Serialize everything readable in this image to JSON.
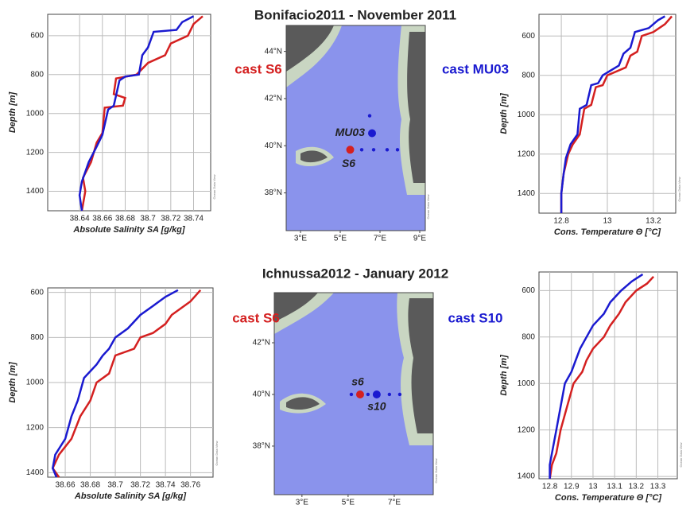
{
  "chart_data": [
    {
      "type": "profile",
      "xlabel": "Absolute Salinity SA [g/kg]",
      "ylabel": "Depth [m]",
      "watermark": "Ocean Data View",
      "xlim": [
        38.612,
        38.755
      ],
      "xticks": [
        38.64,
        38.66,
        38.68,
        38.7,
        38.72,
        38.74
      ],
      "ylim": [
        490,
        1500
      ],
      "yticks": [
        600,
        800,
        1000,
        1200,
        1400
      ],
      "y_inverted": true,
      "grid": true,
      "series": [
        {
          "color": "#d42020",
          "x": [
            38.748,
            38.74,
            38.735,
            38.72,
            38.715,
            38.7,
            38.69,
            38.672,
            38.67,
            38.68,
            38.678,
            38.662,
            38.66,
            38.655,
            38.65,
            38.643,
            38.645,
            38.642
          ],
          "values": [
            500,
            540,
            600,
            640,
            700,
            740,
            800,
            820,
            900,
            920,
            960,
            970,
            1100,
            1150,
            1250,
            1330,
            1400,
            1500
          ]
        },
        {
          "color": "#1a1ad0",
          "x": [
            38.74,
            38.73,
            38.725,
            38.705,
            38.7,
            38.695,
            38.692,
            38.68,
            38.675,
            38.67,
            38.665,
            38.66,
            38.655,
            38.648,
            38.642,
            38.64,
            38.642
          ],
          "values": [
            500,
            530,
            570,
            580,
            660,
            700,
            800,
            810,
            830,
            960,
            980,
            1110,
            1170,
            1250,
            1350,
            1420,
            1500
          ]
        }
      ]
    },
    {
      "type": "map",
      "title": "Bonifacio2011 - November 2011",
      "watermark": "Ocean Data View",
      "xlim": [
        2.28,
        9.28
      ],
      "xticks": [
        {
          "value": 3,
          "label": "3°E"
        },
        {
          "value": 5,
          "label": "5°E"
        },
        {
          "value": 7,
          "label": "7°E"
        },
        {
          "value": 9,
          "label": "9°E"
        }
      ],
      "ylim": [
        36.4,
        45.1
      ],
      "yticks": [
        {
          "value": 38,
          "label": "38°N"
        },
        {
          "value": 40,
          "label": "40°N"
        },
        {
          "value": 42,
          "label": "42°N"
        },
        {
          "value": 44,
          "label": "44°N"
        }
      ],
      "series": [
        {
          "name": "cast S6",
          "color": "#d42020",
          "x": [
            5.5
          ],
          "values": [
            39.83
          ],
          "labels": [
            "S6"
          ]
        },
        {
          "name": "cast MU03",
          "color": "#1a1ad0",
          "x": [
            6.6
          ],
          "values": [
            40.53
          ],
          "labels": [
            "MU03"
          ]
        },
        {
          "color": "#1a1ad0",
          "x": [
            6.48,
            6.08,
            6.68,
            7.36,
            7.88
          ],
          "values": [
            41.27,
            39.83,
            39.83,
            39.83,
            39.83
          ]
        }
      ]
    },
    {
      "type": "profile",
      "xlabel": "Cons. Temperature Θ [°C]",
      "ylabel": "Depth [m]",
      "watermark": "Ocean Data View",
      "xlim": [
        12.703,
        13.297
      ],
      "xticks": [
        12.8,
        13,
        13.2
      ],
      "ylim": [
        490,
        1500
      ],
      "yticks": [
        600,
        800,
        1000,
        1200,
        1400
      ],
      "y_inverted": true,
      "grid": true,
      "series": [
        {
          "color": "#d42020",
          "x": [
            13.28,
            13.25,
            13.2,
            13.15,
            13.13,
            13.1,
            13.08,
            13.0,
            12.98,
            12.95,
            12.93,
            12.9,
            12.88,
            12.85,
            12.83,
            12.81,
            12.8,
            12.8
          ],
          "values": [
            500,
            540,
            580,
            600,
            680,
            700,
            760,
            800,
            850,
            860,
            950,
            970,
            1100,
            1150,
            1200,
            1300,
            1400,
            1500
          ]
        },
        {
          "color": "#1a1ad0",
          "x": [
            13.25,
            13.22,
            13.18,
            13.12,
            13.1,
            13.07,
            13.05,
            12.98,
            12.96,
            12.93,
            12.91,
            12.88,
            12.87,
            12.84,
            12.82,
            12.81,
            12.8,
            12.8
          ],
          "values": [
            500,
            520,
            560,
            580,
            660,
            690,
            750,
            800,
            840,
            850,
            950,
            970,
            1100,
            1150,
            1220,
            1300,
            1400,
            1500
          ]
        }
      ]
    },
    {
      "type": "profile",
      "xlabel": "Absolute Salinity SA [g/kg]",
      "ylabel": "Depth [m]",
      "watermark": "Ocean Data View",
      "xlim": [
        38.646,
        38.778
      ],
      "xticks": [
        38.66,
        38.68,
        38.7,
        38.72,
        38.74,
        38.76
      ],
      "ylim": [
        580,
        1420
      ],
      "yticks": [
        600,
        800,
        1000,
        1200,
        1400
      ],
      "y_inverted": true,
      "grid": true,
      "series": [
        {
          "color": "#d42020",
          "x": [
            38.768,
            38.76,
            38.745,
            38.74,
            38.73,
            38.72,
            38.715,
            38.7,
            38.695,
            38.685,
            38.68,
            38.672,
            38.665,
            38.655,
            38.65,
            38.655
          ],
          "values": [
            590,
            640,
            700,
            740,
            780,
            800,
            850,
            880,
            960,
            1000,
            1080,
            1150,
            1250,
            1320,
            1380,
            1420
          ]
        },
        {
          "color": "#1a1ad0",
          "x": [
            38.75,
            38.74,
            38.73,
            38.72,
            38.71,
            38.7,
            38.695,
            38.69,
            38.685,
            38.675,
            38.67,
            38.665,
            38.66,
            38.652,
            38.65,
            38.653
          ],
          "values": [
            590,
            620,
            660,
            700,
            760,
            800,
            850,
            880,
            920,
            980,
            1080,
            1150,
            1250,
            1320,
            1380,
            1420
          ]
        }
      ]
    },
    {
      "type": "map",
      "title": "Ichnussa2012 - January 2012",
      "watermark": "Ocean Data View",
      "xlim": [
        1.8,
        8.69
      ],
      "xticks": [
        {
          "value": 3,
          "label": "3°E"
        },
        {
          "value": 5,
          "label": "5°E"
        },
        {
          "value": 7,
          "label": "7°E"
        }
      ],
      "ylim": [
        36.12,
        43.94
      ],
      "yticks": [
        {
          "value": 38,
          "label": "38°N"
        },
        {
          "value": 40,
          "label": "40°N"
        },
        {
          "value": 42,
          "label": "42°N"
        }
      ],
      "series": [
        {
          "name": "cast S6",
          "color": "#d42020",
          "x": [
            5.52
          ],
          "values": [
            40
          ],
          "labels": [
            "s6"
          ]
        },
        {
          "name": "cast S10",
          "color": "#1a1ad0",
          "x": [
            6.24
          ],
          "values": [
            40
          ],
          "labels": [
            "s10"
          ]
        },
        {
          "color": "#1a1ad0",
          "x": [
            5.14,
            5.86,
            6.79,
            7.24
          ],
          "values": [
            40,
            40,
            40,
            40
          ]
        }
      ]
    },
    {
      "type": "profile",
      "xlabel": "Cons. Temperature Θ [°C]",
      "ylabel": "Depth [m]",
      "watermark": "Ocean Data View",
      "xlim": [
        12.75,
        13.39
      ],
      "xticks": [
        12.8,
        12.9,
        13,
        13.1,
        13.2,
        13.3
      ],
      "ylim": [
        520,
        1410
      ],
      "yticks": [
        600,
        800,
        1000,
        1200,
        1400
      ],
      "y_inverted": true,
      "grid": true,
      "series": [
        {
          "color": "#d42020",
          "x": [
            13.28,
            13.25,
            13.2,
            13.15,
            13.12,
            13.08,
            13.05,
            13.0,
            12.97,
            12.95,
            12.91,
            12.88,
            12.85,
            12.83,
            12.81,
            12.8
          ],
          "values": [
            540,
            570,
            600,
            650,
            700,
            750,
            800,
            850,
            900,
            950,
            1000,
            1100,
            1200,
            1300,
            1350,
            1410
          ]
        },
        {
          "color": "#1a1ad0",
          "x": [
            13.23,
            13.18,
            13.13,
            13.08,
            13.05,
            13.0,
            12.97,
            12.94,
            12.92,
            12.9,
            12.87,
            12.85,
            12.83,
            12.81,
            12.8,
            12.8
          ],
          "values": [
            530,
            560,
            600,
            650,
            700,
            750,
            800,
            850,
            900,
            950,
            1000,
            1100,
            1200,
            1300,
            1350,
            1410
          ]
        }
      ]
    }
  ]
}
